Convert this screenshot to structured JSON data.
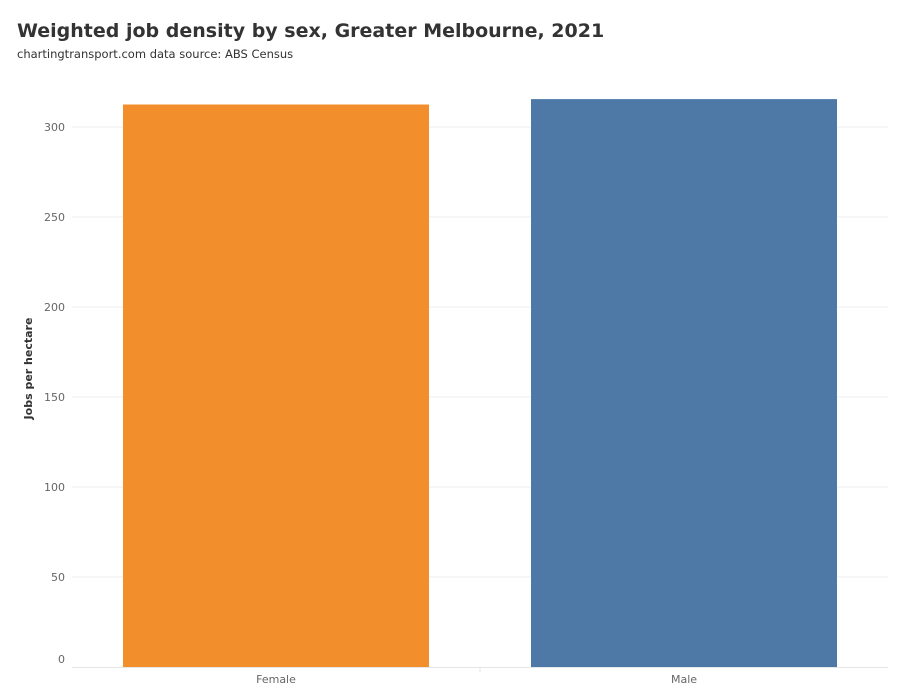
{
  "chart_data": {
    "type": "bar",
    "title": "Weighted job density by sex, Greater Melbourne, 2021",
    "subtitle": "chartingtransport.com  data source: ABS Census",
    "categories": [
      "Female",
      "Male"
    ],
    "values": [
      312.5,
      315.5
    ],
    "colors": [
      "#f28e2b",
      "#4e79a7"
    ],
    "xlabel": "",
    "ylabel": "Jobs per hectare",
    "ylim": [
      0,
      325
    ],
    "yticks": [
      0,
      50,
      100,
      150,
      200,
      250,
      300
    ],
    "grid": true,
    "legend": "none"
  }
}
